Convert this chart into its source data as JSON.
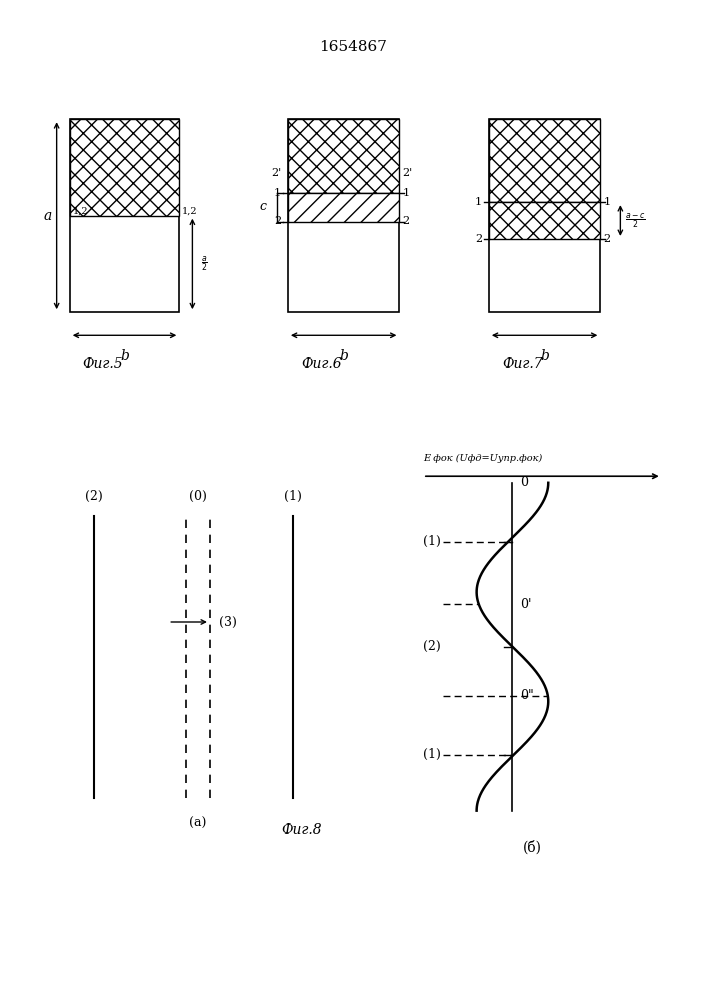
{
  "title": "1654867",
  "title_fontsize": 11,
  "fig5_label": "Фиг.5",
  "fig6_label": "Фиг.6",
  "fig7_label": "Фиг.7",
  "fig8_label": "Фиг.8",
  "label_a": "a",
  "label_b": "b",
  "label_Efok": "Eфок (Uфд=Uупр.фок)",
  "bg_color": "#ffffff"
}
